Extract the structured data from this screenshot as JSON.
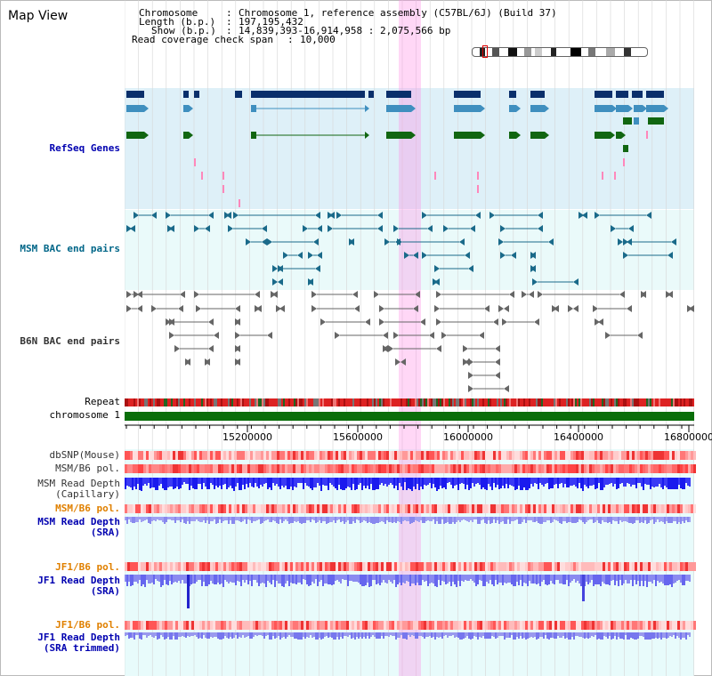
{
  "title": "Map View",
  "info": {
    "chromosome_label": "Chromosome",
    "chromosome_value": "Chromosome 1, reference assembly (C57BL/6J) (Build 37)",
    "length_label": "Length (b.p.)",
    "length_value": "197,195,432",
    "show_label": "Show (b.p.)",
    "show_value": "14,839,393-16,914,958 : 2,075,566 bp",
    "coverage_label": "Read coverage check span",
    "coverage_value": "10,000"
  },
  "tracks": {
    "refseq": "RefSeq Genes",
    "msm_bac": "MSM BAC end pairs",
    "b6n_bac": "B6N BAC end pairs",
    "repeat": "Repeat",
    "chromosome": "chromosome 1",
    "dbsnp": "dbSNP(Mouse)",
    "msm_b6_pol": "MSM/B6 pol.",
    "msm_depth_cap_1": "MSM Read Depth",
    "msm_depth_cap_2": "(Capillary)",
    "msm_b6_pol_sra": "MSM/B6 pol.",
    "msm_depth_sra_1": "MSM Read Depth",
    "msm_depth_sra_2": "(SRA)",
    "jf1_b6_pol": "JF1/B6 pol.",
    "jf1_depth_sra_1": "JF1 Read Depth",
    "jf1_depth_sra_2": "(SRA)",
    "jf1_b6_pol_trim": "JF1/B6 pol.",
    "jf1_depth_trim_1": "JF1 Read Depth",
    "jf1_depth_trim_2": "(SRA trimmed)"
  },
  "axis_ticks": [
    "15200000",
    "15600000",
    "16000000",
    "16400000",
    "16800000"
  ],
  "colors": {
    "refseq_dark": "#0a2f6b",
    "refseq_mid": "#3f8fbf",
    "refseq_green": "#116611",
    "msm_bac": "#1a6a8a",
    "b6n_bac": "#666666",
    "chromosome": "#0a6e0a",
    "depth_dark": "#1a1aee",
    "depth_light": "#7777ee",
    "highlight": "#ff8ce6"
  }
}
